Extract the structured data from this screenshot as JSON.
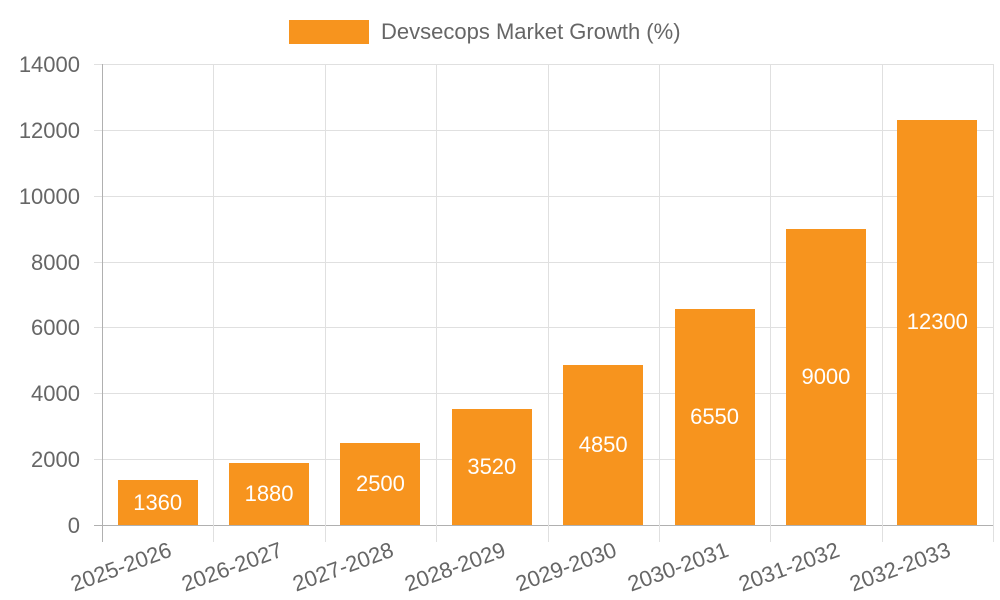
{
  "chart_data": {
    "type": "bar",
    "title": "",
    "legend": [
      {
        "label": "Devsecops Market Growth (%)",
        "color": "#F7941E"
      }
    ],
    "legend_position": "top",
    "categories": [
      "2025-2026",
      "2026-2027",
      "2027-2028",
      "2028-2029",
      "2029-2030",
      "2030-2031",
      "2031-2032",
      "2032-2033"
    ],
    "series": [
      {
        "name": "Devsecops Market Growth (%)",
        "values": [
          1360,
          1880,
          2500,
          3520,
          4850,
          6550,
          9000,
          12300
        ],
        "color": "#F7941E"
      }
    ],
    "data_labels": [
      "1360",
      "1880",
      "2500",
      "3520",
      "4850",
      "6550",
      "9000",
      "12300"
    ],
    "xlabel": "",
    "ylabel": "",
    "ylim": [
      0,
      14000
    ],
    "yticks": [
      "0",
      "2000",
      "4000",
      "6000",
      "8000",
      "10000",
      "12000",
      "14000"
    ],
    "grid": true
  }
}
